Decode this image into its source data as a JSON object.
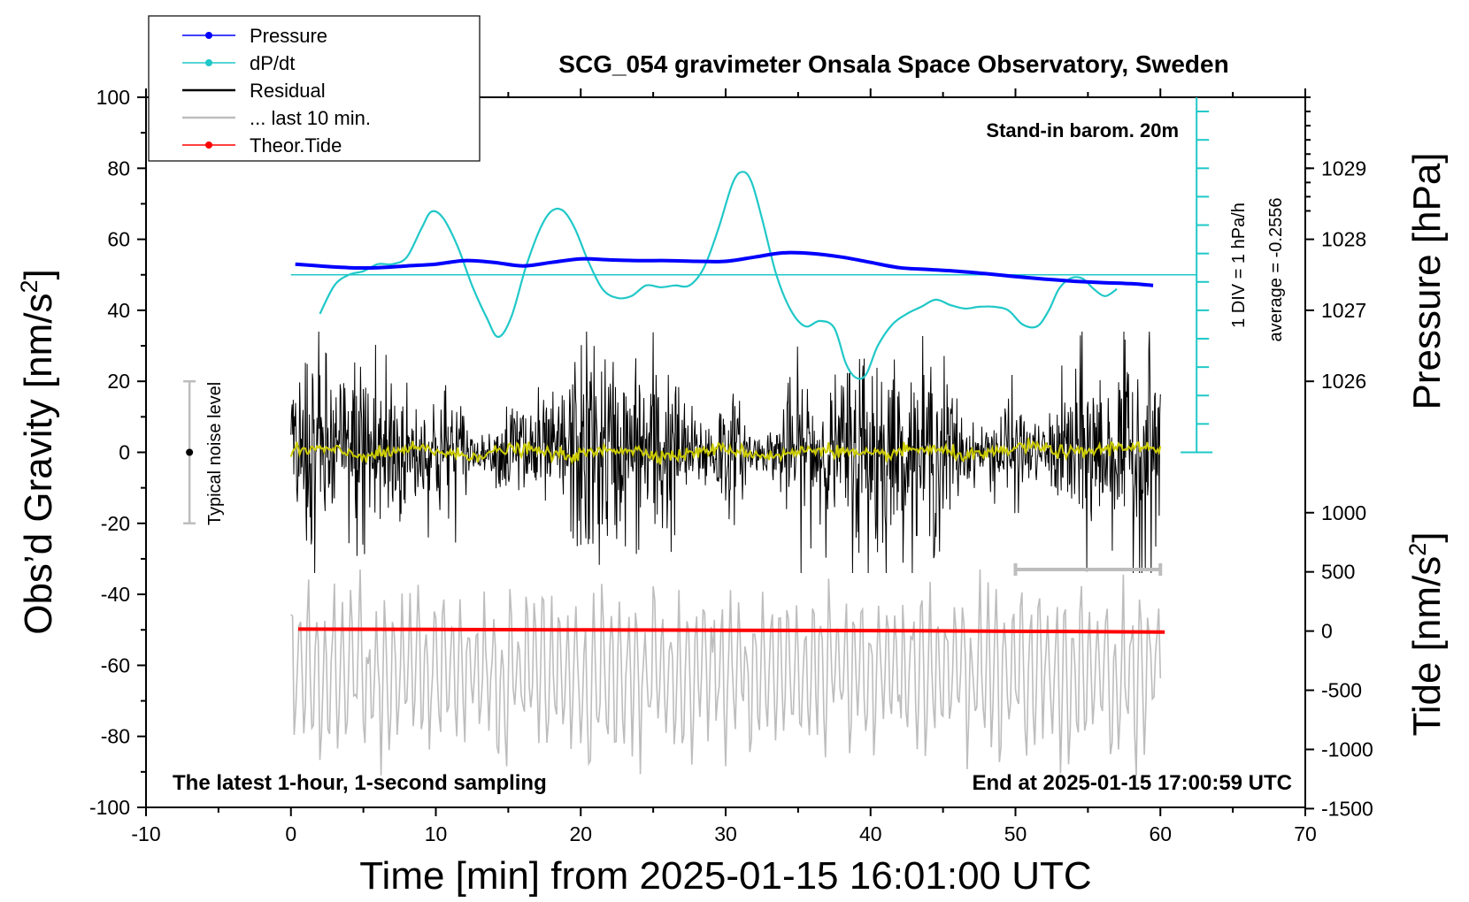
{
  "chart_data": {
    "type": "line",
    "title": "SCG_054 gravimeter Onsala Space Observatory, Sweden",
    "xlabel": "Time [min] from 2025-01-15 16:01:00 UTC",
    "ylabel_main": "Obs’d Gravity [nm/s",
    "ylabel_main_sup": "2",
    "ylabel_main_end": "]",
    "ylabel_pressure": "Pressure [hPa]",
    "ylabel_tide": "Tide [nm/s",
    "ylabel_tide_sup": "2",
    "ylabel_tide_end": "]",
    "xlim": [
      -10,
      70
    ],
    "ylim_main": [
      -100,
      100
    ],
    "x_ticks": [
      "-10",
      "0",
      "10",
      "20",
      "30",
      "40",
      "50",
      "60",
      "70"
    ],
    "y_ticks_main": [
      "100",
      "80",
      "60",
      "40",
      "20",
      "0",
      "-20",
      "-40",
      "-60",
      "-80",
      "-100"
    ],
    "y_ticks_pressure": [
      "1029",
      "1028",
      "1027",
      "1026"
    ],
    "y_ticks_tide": [
      "1000",
      "500",
      "0",
      "-500",
      "-1000",
      "-1500"
    ],
    "pressure_axis": {
      "hPa_at_top_tick": 1029,
      "gravity_at_top_tick": 80,
      "gravity_per_hPa": 20
    },
    "tide_axis": {
      "tide_at_top_tick": 1000,
      "gravity_at_top_tick": -17,
      "gravity_per_500": 16.67
    },
    "annotations": {
      "stand_in": "Stand-in barom. 20m",
      "div_note": "1 DIV = 1 hPa/h",
      "average_note": "average = -0.2556",
      "noise_label": "Typical noise level",
      "bottom_left": "The latest 1-hour, 1-second sampling",
      "bottom_right": "End at 2025-01-15 17:00:59 UTC"
    },
    "legend": [
      {
        "label": "Pressure",
        "color": "#0000ff",
        "marker": "dot"
      },
      {
        "label": "dP/dt",
        "color": "#20c8c8",
        "marker": "dot"
      },
      {
        "label": "Residual",
        "color": "#000000",
        "marker": "none"
      },
      {
        "label": "... last 10 min.",
        "color": "#bdbdbd",
        "marker": "none"
      },
      {
        "label": "Theor.Tide",
        "color": "#ff0000",
        "marker": "dot"
      }
    ],
    "series": [
      {
        "name": "Pressure",
        "color": "#0000ff",
        "unit": "gravity-axis units",
        "x": [
          0.3,
          2,
          4,
          6,
          8,
          10,
          12,
          14,
          16,
          18,
          20,
          22,
          24,
          26,
          28,
          30,
          32,
          34,
          36,
          38,
          40,
          42,
          44,
          46,
          48,
          50,
          52,
          54,
          56,
          58,
          59.5
        ],
        "y": [
          53,
          52.5,
          52,
          52,
          52.5,
          53,
          54,
          53.5,
          52.5,
          53.5,
          54.5,
          54.2,
          54,
          54,
          53.8,
          53.8,
          55,
          56.2,
          56,
          55,
          53.5,
          52,
          51.5,
          51,
          50.3,
          49.5,
          48.8,
          48.2,
          47.8,
          47.5,
          47
        ]
      },
      {
        "name": "dP/dt",
        "color": "#20c8c8",
        "unit": "gravity-axis units",
        "x": [
          2,
          3,
          4,
          5,
          6,
          7,
          8,
          9,
          9.7,
          10.5,
          11.5,
          12.5,
          13.5,
          14.3,
          15.2,
          16.2,
          17.2,
          18,
          18.8,
          19.6,
          20.5,
          21.5,
          22.5,
          23.5,
          24.5,
          25.5,
          26.5,
          27.5,
          28.5,
          29.5,
          30.5,
          31.2,
          31.8,
          32.5,
          33.5,
          34.5,
          35.5,
          36.5,
          37.5,
          38.3,
          39,
          39.7,
          40.5,
          41.5,
          42.5,
          43.5,
          44.5,
          45.5,
          46.5,
          47.5,
          48.5,
          49.5,
          50.5,
          51.5,
          52.3,
          53,
          53.8,
          54.6,
          55.4,
          56.2,
          57
        ],
        "y": [
          39,
          47,
          50,
          51,
          53,
          53,
          55,
          63,
          67.8,
          66,
          58,
          47,
          38,
          32.5,
          38,
          52,
          63,
          68,
          68,
          63,
          54,
          46,
          43.5,
          44,
          47,
          46.5,
          47,
          47,
          52,
          63,
          76,
          79,
          76,
          66,
          50,
          40,
          35.5,
          37,
          35,
          25,
          21,
          22,
          30,
          36,
          39,
          41,
          43,
          41.5,
          40.5,
          41,
          41,
          40,
          36,
          35.5,
          40,
          46,
          49,
          49,
          46,
          44,
          46
        ]
      },
      {
        "name": "Residual",
        "color": "#000000",
        "unit": "nm/s2",
        "x_range": [
          0,
          60
        ],
        "sampling": "1 s",
        "approx_envelope": [
          -30,
          30
        ]
      },
      {
        "name": "... last 10 min.",
        "color": "#bdbdbd",
        "unit": "gravity-axis units (last 10 min, x-expanded)",
        "x_range": [
          0,
          60
        ],
        "approx_envelope": [
          -90,
          -35
        ]
      },
      {
        "name": "Theor.Tide",
        "color": "#ff0000",
        "unit": "gravity-axis units",
        "x": [
          0.5,
          10,
          20,
          30,
          40,
          50,
          60.3
        ],
        "y": [
          -49.8,
          -49.9,
          -50,
          -50.1,
          -50.2,
          -50.4,
          -50.6
        ]
      },
      {
        "name": "Residual smoothed",
        "color": "#cccc00",
        "unit": "nm/s2",
        "x_range": [
          0,
          60
        ],
        "approx_level": 0
      }
    ],
    "dpdt_baseline": 50,
    "noise_bar": {
      "x": -7,
      "y_low": -20,
      "y_high": 20,
      "center": 0
    },
    "ten_min_bar": {
      "x_start": 50,
      "x_end": 60,
      "y": -33
    }
  }
}
